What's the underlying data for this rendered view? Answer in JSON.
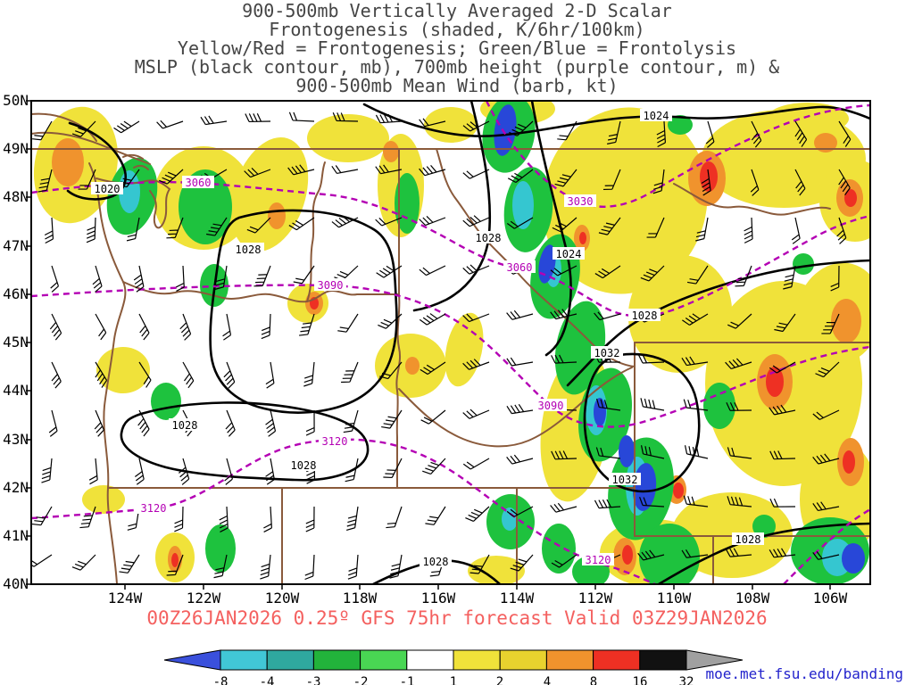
{
  "title": {
    "lines": [
      "900-500mb Vertically Averaged 2-D Scalar",
      "Frontogenesis (shaded, K/6hr/100km)",
      "Yellow/Red = Frontogenesis;  Green/Blue = Frontolysis",
      "MSLP (black contour, mb), 700mb height (purple contour, m) &",
      "900-500mb Mean Wind (barb, kt)"
    ]
  },
  "axes": {
    "lat": [
      "50N",
      "49N",
      "48N",
      "47N",
      "46N",
      "45N",
      "44N",
      "43N",
      "42N",
      "41N",
      "40N"
    ],
    "lon": [
      "124W",
      "122W",
      "120W",
      "118W",
      "116W",
      "114W",
      "112W",
      "110W",
      "108W",
      "106W"
    ]
  },
  "map": {
    "pressure_labels": [
      "1020",
      "1028",
      "1024",
      "1028",
      "1024",
      "1028",
      "1032",
      "1028",
      "1028",
      "1032",
      "1028",
      "1028"
    ],
    "height_labels": [
      "3060",
      "3030",
      "3060",
      "3090",
      "3090",
      "3120",
      "3120",
      "3120"
    ]
  },
  "caption": "00Z26JAN2026 0.25º GFS 75hr forecast Valid 03Z29JAN2026",
  "link": "moe.met.fsu.edu/banding",
  "colorbar": {
    "labels": [
      "-8",
      "-4",
      "-3",
      "-2",
      "-1",
      "1",
      "2",
      "4",
      "8",
      "16",
      "32"
    ],
    "colors": [
      "#3a50dc",
      "#41c7d6",
      "#2fa89f",
      "#22b33b",
      "#49d653",
      "#ffffff",
      "#f0e23a",
      "#e8d22e",
      "#f0932d",
      "#ee3023",
      "#111111",
      "#a0a0a0"
    ]
  },
  "palette": {
    "yellow": "#f0e23a",
    "orange": "#f0932d",
    "red": "#ee3023",
    "green": "#1ec23e",
    "cyan": "#35c6d0",
    "blue": "#2847d8",
    "mslp_contour": "#000000",
    "height_contour": "#b400b4",
    "state_border": "#8a5a3b",
    "wind_barb": "#000000",
    "caption_red": "#f4605f",
    "link_blue": "#2323cc"
  },
  "chart_data": {
    "type": "filled_contour_weather_map",
    "title": "900-500mb Vertically Averaged 2-D Scalar Frontogenesis",
    "region": {
      "lat": [
        "40N",
        "50N"
      ],
      "lon": [
        "106W",
        "124W"
      ],
      "area": "Pacific Northwest / Northern Rockies, USA"
    },
    "x_ticks": [
      "124W",
      "122W",
      "120W",
      "118W",
      "116W",
      "114W",
      "112W",
      "110W",
      "108W",
      "106W"
    ],
    "y_ticks": [
      "40N",
      "41N",
      "42N",
      "43N",
      "44N",
      "45N",
      "46N",
      "47N",
      "48N",
      "49N",
      "50N"
    ],
    "shaded_field": {
      "variable": "frontogenesis",
      "units": "K/6hr/100km",
      "color_levels": [
        -8,
        -4,
        -3,
        -2,
        -1,
        1,
        2,
        4,
        8,
        16,
        32
      ],
      "interpretation": {
        "yellow_red": "Frontogenesis",
        "green_blue": "Frontolysis"
      },
      "pattern": "NW-SE oriented frontolysis band (green with cyan/blue cores) from about 50N 113W to 40N 109W; widespread frontogenesis (yellow with orange/red cores) east of the band, over the coast and the northern Rockies"
    },
    "mslp_contours": {
      "units": "mb",
      "color": "black",
      "labeled_values": [
        1020,
        1024,
        1028,
        1032
      ]
    },
    "height_700mb_contours": {
      "units": "m",
      "color": "purple",
      "style": "dashed",
      "labeled_values": [
        3030,
        3060,
        3090,
        3120
      ]
    },
    "wind": {
      "variable": "900-500mb mean wind",
      "symbol": "barbs",
      "units": "kt"
    },
    "forecast": {
      "init": "00Z26JAN2026",
      "model": "GFS",
      "resolution": "0.25º",
      "lead": "75hr",
      "valid": "03Z29JAN2026"
    }
  }
}
